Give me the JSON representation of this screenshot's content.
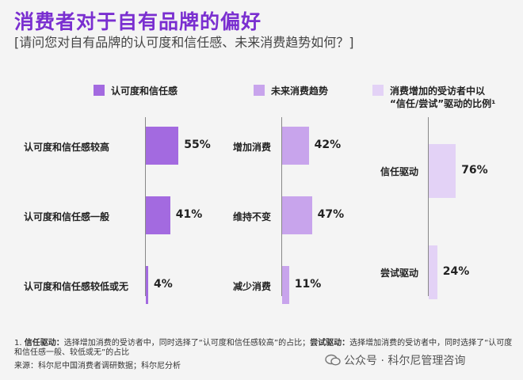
{
  "header": {
    "title": "消费者对于自有品牌的偏好",
    "subtitle": "[请问您对自有品牌的认可度和信任感、未来消费趋势如何？]"
  },
  "colors": {
    "trust": "#a36ae0",
    "trend": "#c8a4ec",
    "driver": "#e3d2f6"
  },
  "chart_data": [
    {
      "type": "bar",
      "orientation": "horizontal",
      "legend": "认可度和信任感",
      "categories": [
        "认可度和信任感较高",
        "认可度和信任感一般",
        "认可度和信任感较低或无"
      ],
      "values": [
        55,
        41,
        4
      ],
      "labels": [
        "55%",
        "41%",
        "4%"
      ],
      "xlim": [
        0,
        100
      ],
      "unit": "%"
    },
    {
      "type": "bar",
      "orientation": "horizontal",
      "legend": "未来消费趋势",
      "categories": [
        "增加消费",
        "维持不变",
        "减少消费"
      ],
      "values": [
        42,
        47,
        11
      ],
      "labels": [
        "42%",
        "47%",
        "11%"
      ],
      "xlim": [
        0,
        100
      ],
      "unit": "%"
    },
    {
      "type": "bar",
      "orientation": "horizontal",
      "legend_line1": "消费增加的受访者中以",
      "legend_line2": "“信任/尝试”驱动的比例¹",
      "categories": [
        "信任驱动",
        "尝试驱动"
      ],
      "values": [
        76,
        24
      ],
      "labels": [
        "76%",
        "24%"
      ],
      "xlim": [
        0,
        100
      ],
      "unit": "%"
    }
  ],
  "footnote": {
    "num": "1.",
    "term1": "信任驱动：",
    "text1": "选择增加消费的受访者中，同时选择了“认可度和信任感较高”的占比；",
    "term2": "尝试驱动：",
    "text2": "选择增加消费的受访者中，同时选择了“认可度和信任感一般、较低或无”的占比"
  },
  "source": "来源：科尔尼中国消费者调研数据；科尔尼分析",
  "watermark": "公众号 · 科尔尼管理咨询"
}
